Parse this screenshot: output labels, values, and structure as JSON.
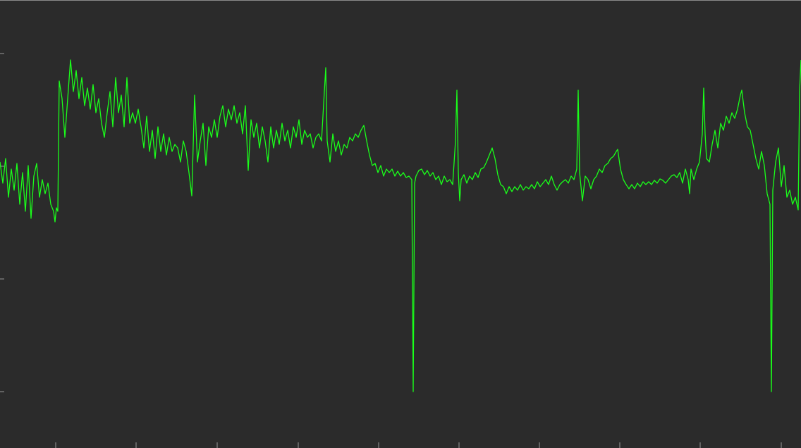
{
  "chart_data": {
    "type": "line",
    "x": [
      0,
      4,
      8,
      12,
      16,
      20,
      24,
      28,
      32,
      36,
      40,
      44,
      48,
      52,
      56,
      60,
      64,
      68,
      72,
      76,
      78,
      80,
      82,
      84,
      88,
      92,
      96,
      100,
      104,
      108,
      112,
      116,
      120,
      124,
      128,
      132,
      136,
      140,
      144,
      148,
      152,
      156,
      160,
      164,
      168,
      172,
      176,
      180,
      184,
      188,
      192,
      196,
      200,
      204,
      208,
      212,
      216,
      220,
      224,
      228,
      232,
      236,
      240,
      244,
      248,
      252,
      256,
      260,
      264,
      268,
      272,
      276,
      280,
      284,
      288,
      292,
      296,
      300,
      304,
      308,
      312,
      316,
      320,
      324,
      328,
      332,
      336,
      340,
      344,
      348,
      352,
      356,
      360,
      364,
      368,
      372,
      376,
      380,
      384,
      388,
      392,
      396,
      400,
      404,
      408,
      412,
      416,
      420,
      424,
      428,
      432,
      436,
      440,
      444,
      448,
      452,
      456,
      460,
      462,
      464,
      468,
      472,
      476,
      480,
      484,
      488,
      492,
      496,
      500,
      504,
      508,
      512,
      516,
      520,
      524,
      528,
      532,
      536,
      540,
      544,
      548,
      552,
      556,
      560,
      564,
      568,
      572,
      576,
      580,
      584,
      586,
      588,
      590,
      594,
      598,
      602,
      606,
      610,
      614,
      618,
      622,
      626,
      630,
      634,
      638,
      642,
      646,
      648,
      650,
      652,
      654,
      658,
      662,
      666,
      670,
      674,
      678,
      682,
      686,
      690,
      694,
      698,
      702,
      706,
      710,
      714,
      718,
      722,
      726,
      730,
      734,
      738,
      742,
      746,
      750,
      754,
      758,
      762,
      766,
      770,
      774,
      778,
      782,
      786,
      790,
      794,
      798,
      802,
      806,
      810,
      814,
      818,
      820,
      822,
      826,
      830,
      834,
      838,
      842,
      846,
      850,
      854,
      858,
      862,
      866,
      870,
      874,
      876,
      880,
      884,
      888,
      892,
      896,
      900,
      904,
      908,
      912,
      916,
      920,
      924,
      928,
      932,
      936,
      940,
      944,
      948,
      952,
      956,
      960,
      964,
      968,
      972,
      976,
      978,
      980,
      984,
      988,
      992,
      996,
      998,
      1000,
      1002,
      1006,
      1010,
      1014,
      1018,
      1022,
      1026,
      1030,
      1034,
      1038,
      1042,
      1046,
      1050,
      1052,
      1056,
      1060,
      1064,
      1068,
      1072,
      1076,
      1080,
      1084,
      1088,
      1092,
      1094,
      1096,
      1100,
      1104,
      1108,
      1112,
      1116,
      1120,
      1124,
      1128,
      1132,
      1134,
      1136
    ],
    "series": [
      {
        "color": "#1aff1a",
        "values": [
          406,
          376,
          411,
          356,
          396,
          366,
          404,
          346,
          391,
          336,
          401,
          326,
          386,
          404,
          356,
          381,
          361,
          376,
          346,
          336,
          321,
          341,
          336,
          521,
          496,
          441,
          496,
          551,
          506,
          536,
          496,
          526,
          486,
          511,
          481,
          516,
          476,
          496,
          461,
          441,
          476,
          506,
          456,
          526,
          476,
          501,
          456,
          526,
          461,
          476,
          461,
          481,
          456,
          426,
          471,
          421,
          451,
          411,
          456,
          421,
          446,
          416,
          441,
          421,
          431,
          426,
          406,
          436,
          421,
          391,
          358,
          501,
          406,
          436,
          461,
          401,
          456,
          441,
          466,
          441,
          471,
          486,
          456,
          481,
          466,
          486,
          461,
          476,
          446,
          486,
          394,
          466,
          441,
          461,
          426,
          456,
          436,
          406,
          456,
          426,
          451,
          431,
          461,
          436,
          451,
          426,
          456,
          441,
          466,
          431,
          451,
          441,
          446,
          426,
          441,
          446,
          436,
          506,
          540,
          436,
          406,
          446,
          421,
          436,
          416,
          431,
          426,
          441,
          436,
          446,
          441,
          451,
          458,
          436,
          416,
          401,
          404,
          391,
          401,
          386,
          396,
          391,
          396,
          386,
          393,
          386,
          391,
          384,
          386,
          381,
          80,
          376,
          386,
          394,
          396,
          388,
          394,
          386,
          391,
          381,
          386,
          374,
          386,
          378,
          381,
          374,
          436,
          508,
          391,
          351,
          381,
          388,
          376,
          386,
          381,
          391,
          384,
          396,
          398,
          406,
          416,
          426,
          411,
          388,
          374,
          371,
          361,
          371,
          364,
          371,
          366,
          374,
          366,
          371,
          368,
          374,
          368,
          378,
          371,
          376,
          381,
          374,
          386,
          374,
          366,
          374,
          378,
          381,
          376,
          386,
          381,
          396,
          508,
          391,
          351,
          386,
          381,
          368,
          381,
          386,
          396,
          391,
          401,
          404,
          411,
          414,
          421,
          424,
          396,
          381,
          374,
          368,
          374,
          368,
          376,
          371,
          378,
          374,
          378,
          374,
          380,
          376,
          382,
          380,
          376,
          381,
          386,
          388,
          384,
          391,
          376,
          396,
          381,
          361,
          396,
          381,
          396,
          406,
          446,
          511,
          446,
          411,
          406,
          431,
          451,
          426,
          461,
          451,
          471,
          461,
          476,
          468,
          481,
          501,
          508,
          476,
          456,
          451,
          431,
          411,
          396,
          421,
          401,
          361,
          346,
          80,
          366,
          406,
          426,
          371,
          401,
          356,
          366,
          346,
          356,
          338,
          506,
          551
        ]
      }
    ],
    "xlim": [
      0,
      1136
    ],
    "ylim": [
      0,
      636
    ],
    "xticks": [
      79,
      193,
      308,
      423,
      537,
      651,
      765,
      879,
      993,
      1108
    ],
    "yticks": [
      80,
      240,
      400,
      560
    ],
    "background": "#2b2b2b",
    "axis_color": "#9a9a9a",
    "grid": false
  }
}
